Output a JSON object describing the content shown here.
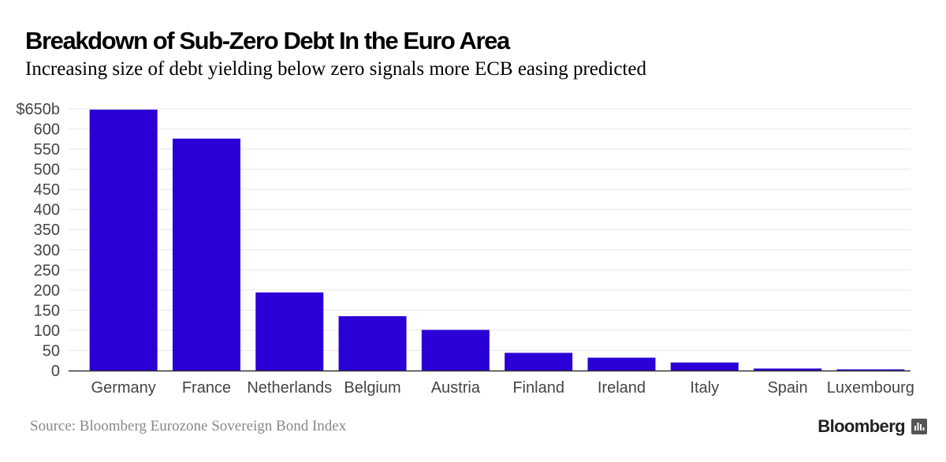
{
  "chart": {
    "title": "Breakdown of Sub-Zero Debt In the Euro Area",
    "subtitle": "Increasing size of debt yielding below zero signals more ECB easing predicted"
  },
  "footer": {
    "source": "Source: Bloomberg Eurozone Sovereign Bond Index",
    "brand": "Bloomberg",
    "brand_icon": "bloomberg-terminal-icon"
  },
  "colors": {
    "bar": "#2b00d6",
    "grid": "#e6e6e6",
    "axis": "#333333",
    "tick_text": "#444444"
  },
  "chart_data": {
    "type": "bar",
    "title": "Breakdown of Sub-Zero Debt In the Euro Area",
    "xlabel": "",
    "ylabel": "",
    "categories": [
      "Germany",
      "France",
      "Netherlands",
      "Belgium",
      "Austria",
      "Finland",
      "Ireland",
      "Italy",
      "Spain",
      "Luxembourg"
    ],
    "values": [
      648,
      576,
      194,
      135,
      101,
      44,
      32,
      20,
      5,
      3
    ],
    "ylim": [
      0,
      650
    ],
    "yticks": [
      0,
      50,
      100,
      150,
      200,
      250,
      300,
      350,
      400,
      450,
      500,
      550,
      600,
      650
    ],
    "ytick_labels": [
      "0",
      "50",
      "100",
      "150",
      "200",
      "250",
      "300",
      "350",
      "400",
      "450",
      "500",
      "550",
      "600",
      "$650b"
    ],
    "grid": true,
    "legend": "none"
  }
}
